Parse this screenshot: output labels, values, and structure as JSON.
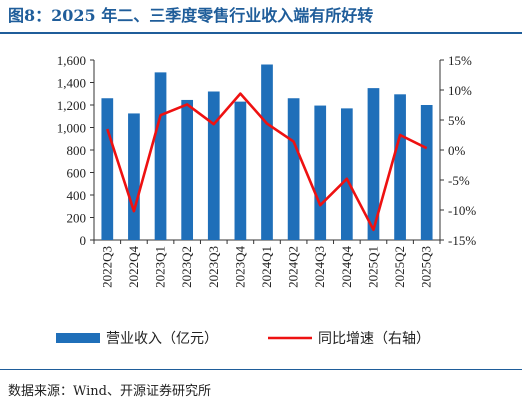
{
  "title": "图8：2025 年二、三季度零售行业收入端有所好转",
  "source": "数据来源：Wind、开源证券研究所",
  "chart_data": {
    "type": "bar",
    "categories": [
      "2022Q3",
      "2022Q4",
      "2023Q1",
      "2023Q2",
      "2023Q3",
      "2023Q4",
      "2024Q1",
      "2024Q2",
      "2024Q3",
      "2024Q4",
      "2025Q1",
      "2025Q2",
      "2025Q3"
    ],
    "series": [
      {
        "name": "营业收入（亿元）",
        "type": "bar",
        "axis": "left",
        "color": "#1f6fb9",
        "values": [
          1260,
          1125,
          1490,
          1245,
          1320,
          1230,
          1560,
          1260,
          1195,
          1170,
          1350,
          1295,
          1200
        ]
      },
      {
        "name": "同比增速（右轴）",
        "type": "line",
        "axis": "right",
        "color": "#ee1111",
        "values": [
          3.5,
          -10.2,
          5.8,
          7.6,
          4.3,
          9.4,
          4.4,
          1.4,
          -9.2,
          -4.8,
          -13.3,
          2.5,
          0.3
        ]
      }
    ],
    "left_axis": {
      "ylim": [
        0,
        1600
      ],
      "ticks": [
        "0",
        "200",
        "400",
        "600",
        "800",
        "1,000",
        "1,200",
        "1,400",
        "1,600"
      ]
    },
    "right_axis": {
      "ylim": [
        -15,
        15
      ],
      "ticks": [
        "-15%",
        "-10%",
        "-5%",
        "0%",
        "5%",
        "10%",
        "15%"
      ]
    },
    "legend_position": "bottom"
  }
}
